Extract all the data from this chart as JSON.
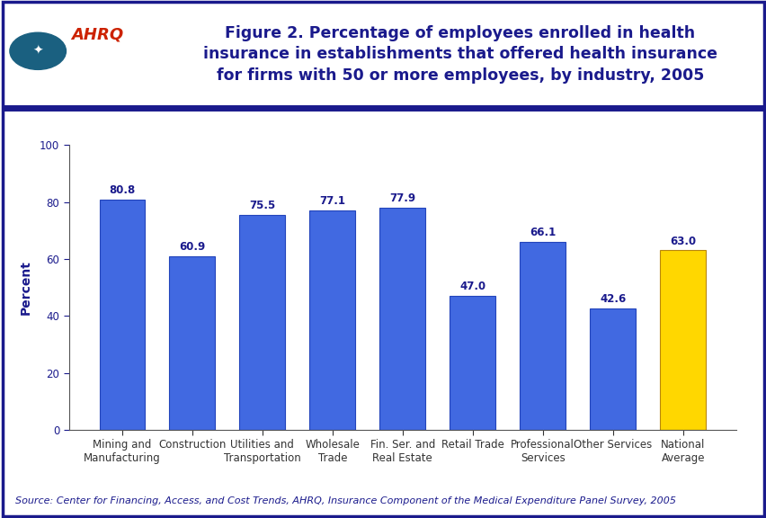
{
  "categories": [
    "Mining and\nManufacturing",
    "Construction",
    "Utilities and\nTransportation",
    "Wholesale\nTrade",
    "Fin. Ser. and\nReal Estate",
    "Retail Trade",
    "Professional\nServices",
    "Other Services",
    "National\nAverage"
  ],
  "values": [
    80.8,
    60.9,
    75.5,
    77.1,
    77.9,
    47.0,
    66.1,
    42.6,
    63.0
  ],
  "bar_colors": [
    "#4169E1",
    "#4169E1",
    "#4169E1",
    "#4169E1",
    "#4169E1",
    "#4169E1",
    "#4169E1",
    "#4169E1",
    "#FFD700"
  ],
  "bar_edge_colors": [
    "#2244BB",
    "#2244BB",
    "#2244BB",
    "#2244BB",
    "#2244BB",
    "#2244BB",
    "#2244BB",
    "#2244BB",
    "#B8860B"
  ],
  "title": "Figure 2. Percentage of employees enrolled in health\ninsurance in establishments that offered health insurance\nfor firms with 50 or more employees, by industry, 2005",
  "ylabel": "Percent",
  "ylim": [
    0,
    100
  ],
  "yticks": [
    0,
    20,
    40,
    60,
    80,
    100
  ],
  "source_text": "Source: Center for Financing, Access, and Cost Trends, AHRQ, Insurance Component of the Medical Expenditure Panel Survey, 2005",
  "title_color": "#1a1a8c",
  "ylabel_color": "#1a1a8c",
  "tick_label_color": "#1a1a8c",
  "value_label_color": "#1a1a8c",
  "source_color": "#1a1a8c",
  "background_color": "#FFFFFF",
  "header_line_color": "#1a1a8c",
  "logo_bg_color": "#2090B0",
  "outer_border_color": "#1a1a8c",
  "title_fontsize": 12.5,
  "ylabel_fontsize": 10,
  "tick_fontsize": 8.5,
  "value_fontsize": 8.5,
  "source_fontsize": 8
}
